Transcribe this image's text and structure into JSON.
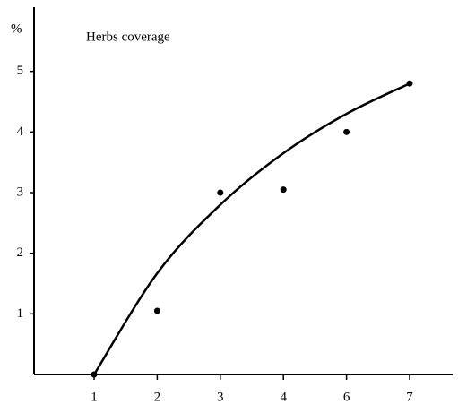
{
  "chart_data": {
    "type": "scatter",
    "annotations": [
      "Herbs coverage"
    ],
    "ylabel": "%",
    "categories": [
      "1",
      "2",
      "3",
      "4",
      "6",
      "7"
    ],
    "series": [
      {
        "color": "#000000",
        "values": [
          0,
          1.05,
          3.0,
          3.05,
          4.0,
          4.8
        ]
      },
      {
        "color": "#000000",
        "style": "line",
        "values": [
          0,
          1.67,
          2.8,
          3.65,
          4.3,
          4.8
        ]
      }
    ],
    "ylim": [
      0,
      6
    ],
    "yticks": [
      1,
      2,
      3,
      4,
      5
    ],
    "grid": false
  }
}
